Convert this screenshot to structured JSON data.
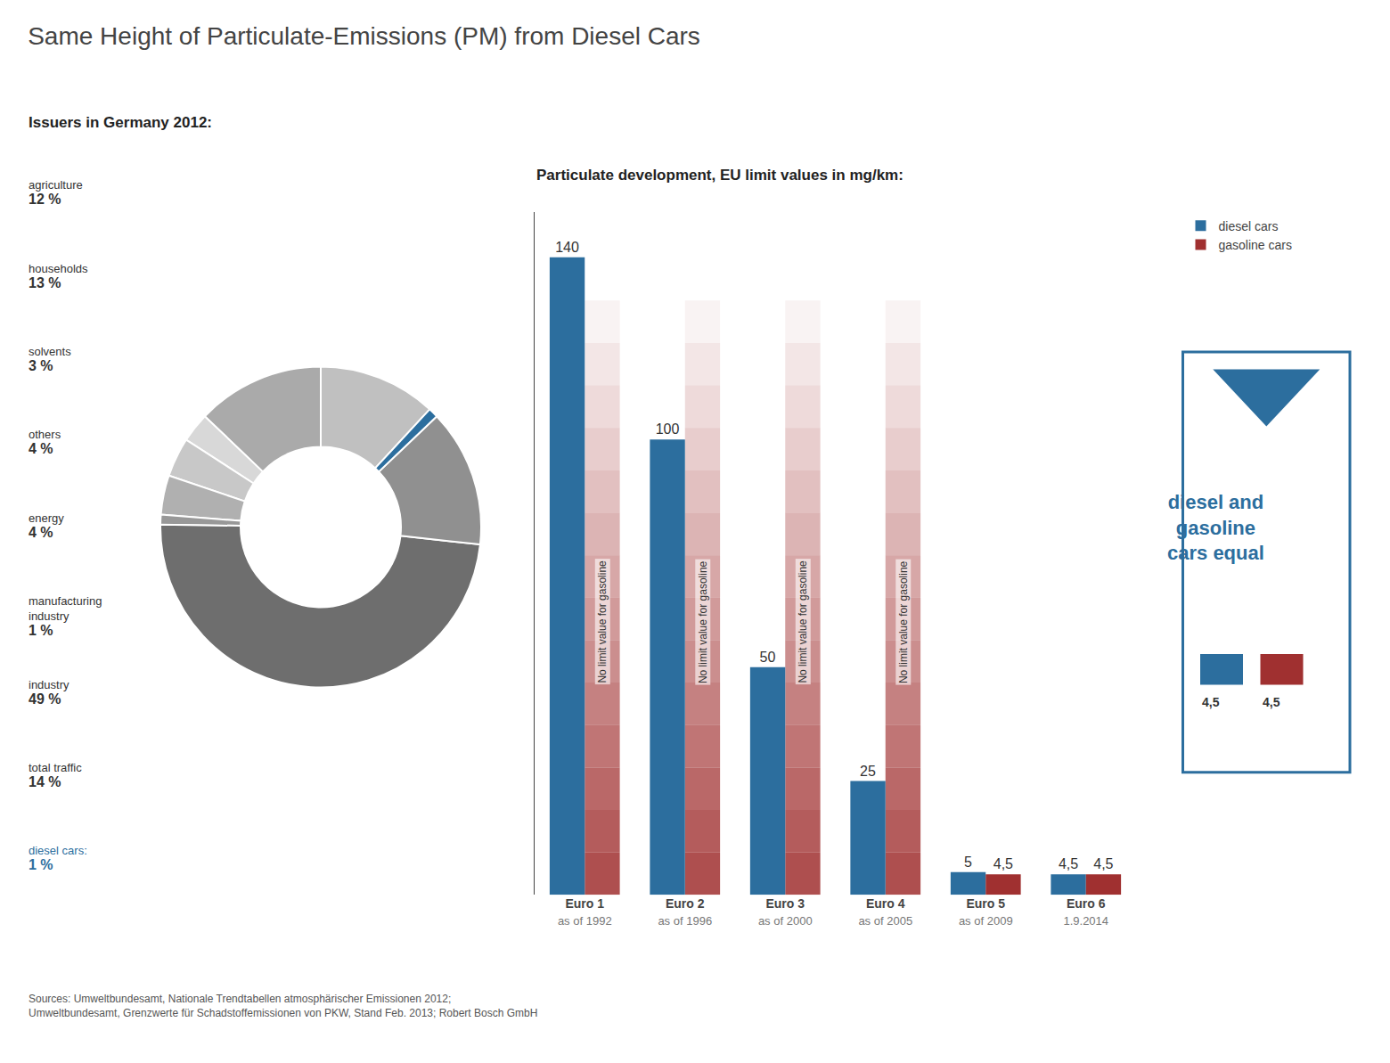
{
  "chart_data": [
    {
      "type": "bar",
      "title": "Same Height of Particulate-Emissions (PM) from Diesel Cars",
      "subtitle": "Particulate development, EU limit values in mg/km:",
      "categories": [
        "Euro 1",
        "Euro 2",
        "Euro 3",
        "Euro 4",
        "Euro 5",
        "Euro 6"
      ],
      "series": [
        {
          "name": "diesel cars",
          "color": "#2c6e9e",
          "values": [
            140,
            100,
            50,
            25,
            5,
            4.5
          ],
          "value_labels": [
            "140",
            "100",
            "50",
            "25",
            "5",
            "4,5"
          ]
        },
        {
          "name": "gasoline cars",
          "color": "#a03030",
          "values": [
            null,
            null,
            null,
            null,
            4.5,
            4.5
          ],
          "value_labels": [
            null,
            null,
            null,
            null,
            "4,5",
            "4,5"
          ]
        }
      ],
      "ylim": [
        0,
        150
      ],
      "grid": false,
      "tick_labels": "x",
      "data_labels": true,
      "legend": "right",
      "annotations": [
        {
          "text": "as of 1992",
          "category": "Euro 1"
        },
        {
          "text": "as of 1996",
          "category": "Euro 2"
        },
        {
          "text": "as of 2000",
          "category": "Euro 3"
        },
        {
          "text": "as of 2005",
          "category": "Euro 4"
        },
        {
          "text": "as of 2009",
          "category": "Euro 5"
        },
        {
          "text": "1.9.2014",
          "category": "Euro 6"
        },
        {
          "text": "No limit value for gasoline",
          "category": "Euro 1",
          "series": "gasoline cars"
        },
        {
          "text": "No limit value for gasoline",
          "category": "Euro 2",
          "series": "gasoline cars"
        },
        {
          "text": "No limit value for gasoline",
          "category": "Euro 3",
          "series": "gasoline cars"
        },
        {
          "text": "No limit value for gasoline",
          "category": "Euro 4",
          "series": "gasoline cars"
        },
        {
          "text": "diesel and\ngasoline\ncars equal",
          "color": "#2c6e9e"
        },
        {
          "text": "4,5",
          "series": "diesel cars"
        },
        {
          "text": "4,5",
          "series": "gasoline cars"
        },
        {
          "text": "Sources: Umweltbundesamt, Nationale Trendtabellen atmosphärischer Emissionen 2012;\nUmweltbundesamt, Grenzwerte für Schadstoffemissionen von PKW, Stand Feb. 2013; Robert Bosch GmbH"
        }
      ]
    },
    {
      "type": "pie",
      "subtitle": "Issuers in Germany 2012:",
      "categories": [
        "agriculture",
        "households",
        "solvents",
        "others",
        "energy",
        "manufacturing\nindustry",
        "industry",
        "total traffic",
        "diesel cars:"
      ],
      "values": [
        12,
        13,
        3,
        4,
        4,
        1,
        49,
        14,
        1
      ],
      "value_labels": [
        "12 %",
        "13 %",
        "3 %",
        "4 %",
        "4 %",
        "1 %",
        "49 %",
        "14 %",
        "1 %"
      ],
      "colors": [
        "#c0c0c0",
        "#aaaaaa",
        "#d8d8d8",
        "#c8c8c8",
        "#b0b0b0",
        "#989898",
        "#6e6e6e",
        "#909090",
        "#2c6e9e"
      ]
    }
  ]
}
